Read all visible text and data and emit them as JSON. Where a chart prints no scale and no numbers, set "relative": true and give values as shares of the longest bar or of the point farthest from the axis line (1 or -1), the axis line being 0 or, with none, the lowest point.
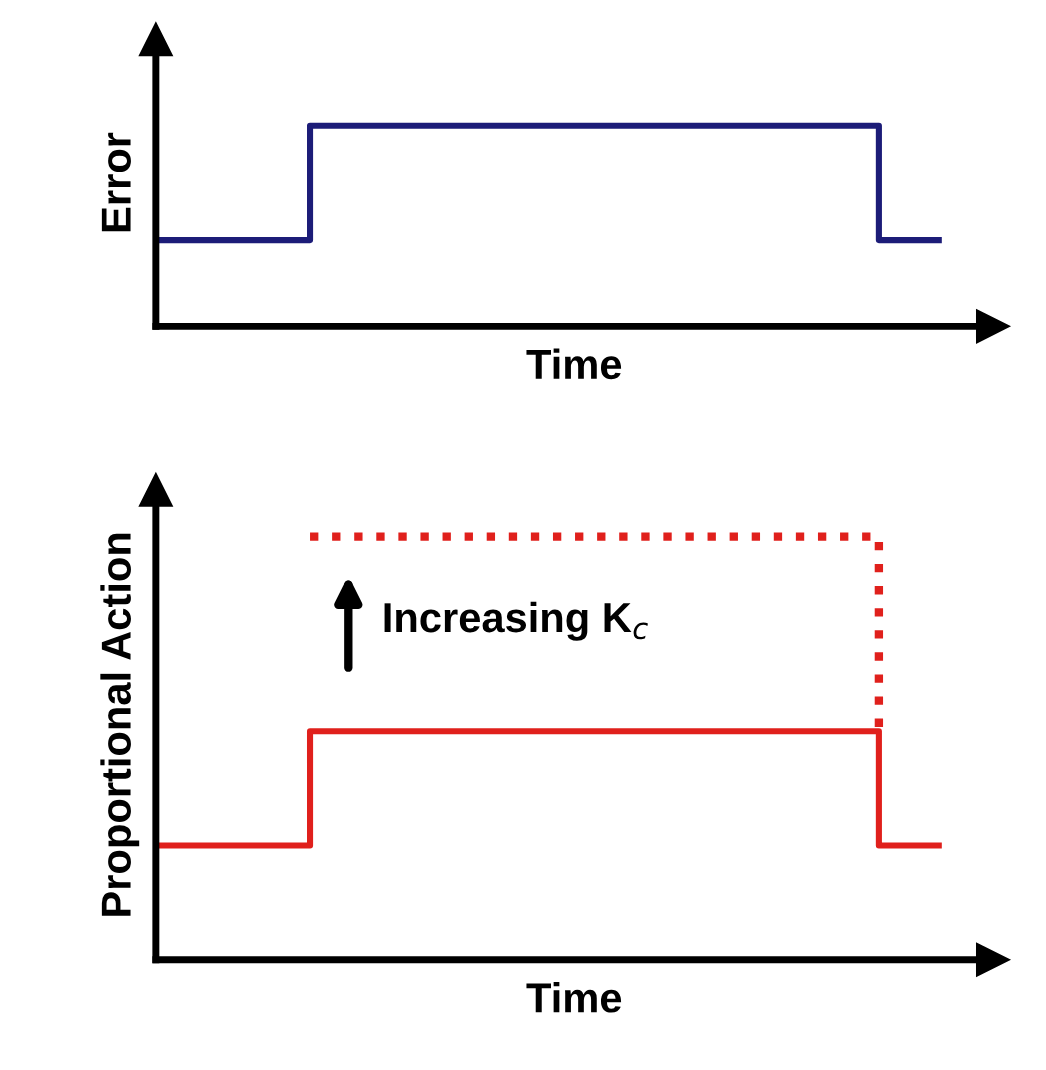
{
  "chart_data": [
    {
      "type": "step",
      "relative": true,
      "xlabel": "Time",
      "ylabel": "Error",
      "tick_labels": false,
      "categories": [
        null,
        null,
        null,
        null,
        null,
        null,
        null,
        null,
        null,
        null,
        null,
        null,
        null,
        null,
        null,
        null,
        null,
        null,
        null,
        null,
        null,
        null,
        null,
        null,
        null,
        null,
        null
      ],
      "series": [
        {
          "color": "#1c1c78",
          "line_style": "solid",
          "values": [
            0.43,
            0.43,
            0.43,
            0.43,
            0.43,
            1,
            1,
            1,
            1,
            1,
            1,
            1,
            1,
            1,
            1,
            1,
            1,
            1,
            1,
            1,
            1,
            1,
            1,
            1,
            0.43,
            0.43,
            0.43
          ]
        }
      ]
    },
    {
      "type": "step",
      "relative": true,
      "xlabel": "Time",
      "ylabel": "Proportional Action",
      "tick_labels": false,
      "annotations": [
        "Increasing K$_{c}$"
      ],
      "categories": [
        null,
        null,
        null,
        null,
        null,
        null,
        null,
        null,
        null,
        null,
        null,
        null,
        null,
        null,
        null,
        null,
        null,
        null,
        null,
        null,
        null,
        null,
        null,
        null,
        null,
        null,
        null
      ],
      "series": [
        {
          "color": "#e0201c",
          "line_style": "solid",
          "values": [
            0.27,
            0.27,
            0.27,
            0.27,
            0.27,
            0.54,
            0.54,
            0.54,
            0.54,
            0.54,
            0.54,
            0.54,
            0.54,
            0.54,
            0.54,
            0.54,
            0.54,
            0.54,
            0.54,
            0.54,
            0.54,
            0.54,
            0.54,
            0.54,
            0.27,
            0.27,
            0.27
          ]
        },
        {
          "color": "#e0201c",
          "line_style": "dotted",
          "values": [
            null,
            null,
            null,
            null,
            null,
            1,
            1,
            1,
            1,
            1,
            1,
            1,
            1,
            1,
            1,
            1,
            1,
            1,
            1,
            1,
            1,
            1,
            1,
            1,
            0.54,
            null,
            null
          ]
        }
      ]
    }
  ]
}
